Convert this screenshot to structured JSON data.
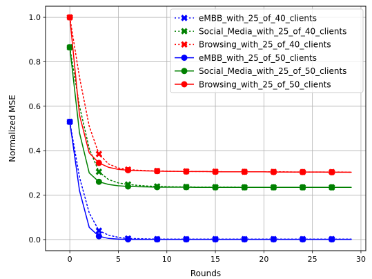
{
  "chart_data": {
    "type": "line",
    "title": "",
    "xlabel": "Rounds",
    "ylabel": "Normalized MSE",
    "xlim": [
      -2.5,
      30.5
    ],
    "ylim": [
      -0.05,
      1.05
    ],
    "xticks": [
      0,
      5,
      10,
      15,
      20,
      25,
      30
    ],
    "yticks": [
      0.0,
      0.2,
      0.4,
      0.6,
      0.8,
      1.0
    ],
    "xtick_labels": [
      "0",
      "5",
      "10",
      "15",
      "20",
      "25",
      "30"
    ],
    "ytick_labels": [
      "0.0",
      "0.2",
      "0.4",
      "0.6",
      "0.8",
      "1.0"
    ],
    "grid": true,
    "legend_position": "top-right",
    "x": [
      0,
      1,
      2,
      3,
      4,
      5,
      6,
      7,
      8,
      9,
      10,
      11,
      12,
      13,
      14,
      15,
      16,
      17,
      18,
      19,
      20,
      21,
      22,
      23,
      24,
      25,
      26,
      27,
      28,
      29
    ],
    "marker_every": 3,
    "series": [
      {
        "name": "eMBB_with_25_of_40_clients",
        "color": "#0000ff",
        "line_style": "dotted",
        "marker": "x",
        "values": [
          0.53,
          0.28,
          0.12,
          0.04,
          0.02,
          0.01,
          0.005,
          0.004,
          0.003,
          0.002,
          0.002,
          0.002,
          0.002,
          0.002,
          0.002,
          0.002,
          0.002,
          0.002,
          0.002,
          0.002,
          0.002,
          0.002,
          0.002,
          0.002,
          0.002,
          0.002,
          0.002,
          0.002,
          0.002,
          0.002
        ]
      },
      {
        "name": "Social_Media_with_25_of_40_clients",
        "color": "#008000",
        "line_style": "dotted",
        "marker": "x",
        "values": [
          0.865,
          0.6,
          0.41,
          0.305,
          0.27,
          0.255,
          0.248,
          0.244,
          0.241,
          0.239,
          0.238,
          0.237,
          0.237,
          0.236,
          0.236,
          0.236,
          0.236,
          0.236,
          0.235,
          0.235,
          0.235,
          0.235,
          0.235,
          0.235,
          0.235,
          0.235,
          0.235,
          0.235,
          0.235,
          0.235
        ]
      },
      {
        "name": "Browsing_with_25_of_40_clients",
        "color": "#ff0000",
        "line_style": "dotted",
        "marker": "x",
        "values": [
          1.0,
          0.73,
          0.51,
          0.385,
          0.34,
          0.322,
          0.315,
          0.312,
          0.31,
          0.309,
          0.308,
          0.307,
          0.307,
          0.306,
          0.306,
          0.306,
          0.305,
          0.305,
          0.305,
          0.305,
          0.305,
          0.305,
          0.305,
          0.304,
          0.304,
          0.304,
          0.304,
          0.304,
          0.304,
          0.303
        ]
      },
      {
        "name": "eMBB_with_25_of_50_clients",
        "color": "#0000ff",
        "line_style": "solid",
        "marker": "o",
        "values": [
          0.53,
          0.22,
          0.055,
          0.015,
          0.005,
          0.002,
          0.001,
          0.001,
          0.001,
          0.001,
          0.001,
          0.001,
          0.001,
          0.001,
          0.001,
          0.001,
          0.001,
          0.001,
          0.001,
          0.001,
          0.001,
          0.001,
          0.001,
          0.001,
          0.001,
          0.001,
          0.001,
          0.001,
          0.001,
          0.001
        ]
      },
      {
        "name": "Social_Media_with_25_of_50_clients",
        "color": "#008000",
        "line_style": "solid",
        "marker": "o",
        "values": [
          0.865,
          0.48,
          0.3,
          0.26,
          0.248,
          0.242,
          0.239,
          0.238,
          0.237,
          0.236,
          0.236,
          0.236,
          0.236,
          0.235,
          0.235,
          0.235,
          0.235,
          0.235,
          0.235,
          0.235,
          0.235,
          0.235,
          0.235,
          0.235,
          0.235,
          0.235,
          0.235,
          0.235,
          0.235,
          0.235
        ]
      },
      {
        "name": "Browsing_with_25_of_50_clients",
        "color": "#ff0000",
        "line_style": "solid",
        "marker": "o",
        "values": [
          1.0,
          0.56,
          0.39,
          0.345,
          0.325,
          0.316,
          0.312,
          0.31,
          0.309,
          0.308,
          0.307,
          0.307,
          0.306,
          0.306,
          0.306,
          0.305,
          0.305,
          0.305,
          0.305,
          0.305,
          0.305,
          0.304,
          0.304,
          0.304,
          0.304,
          0.304,
          0.304,
          0.303,
          0.303,
          0.303
        ]
      }
    ]
  }
}
